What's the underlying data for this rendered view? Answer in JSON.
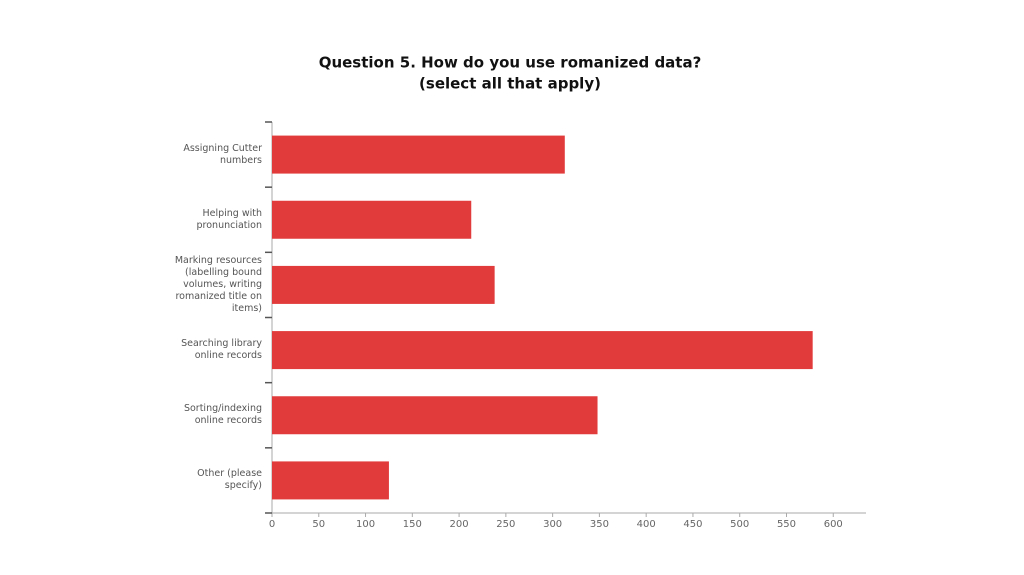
{
  "chart_data": {
    "type": "hbar",
    "title": "Question 5. How do you use romanized data?",
    "subtitle": "(select all that apply)",
    "categories": [
      "Assigning Cutter numbers",
      "Helping with pronunciation",
      "Marking resources (labelling bound volumes, writing romanized title on items)",
      "Searching library online records",
      "Sorting/indexing online records",
      "Other (please specify)"
    ],
    "values": [
      313,
      213,
      238,
      578,
      348,
      125
    ],
    "color": "#e23b3b",
    "xlim": [
      0,
      635
    ],
    "xticks": [
      0,
      50,
      100,
      150,
      200,
      250,
      300,
      350,
      400,
      450,
      500,
      550,
      600
    ]
  }
}
